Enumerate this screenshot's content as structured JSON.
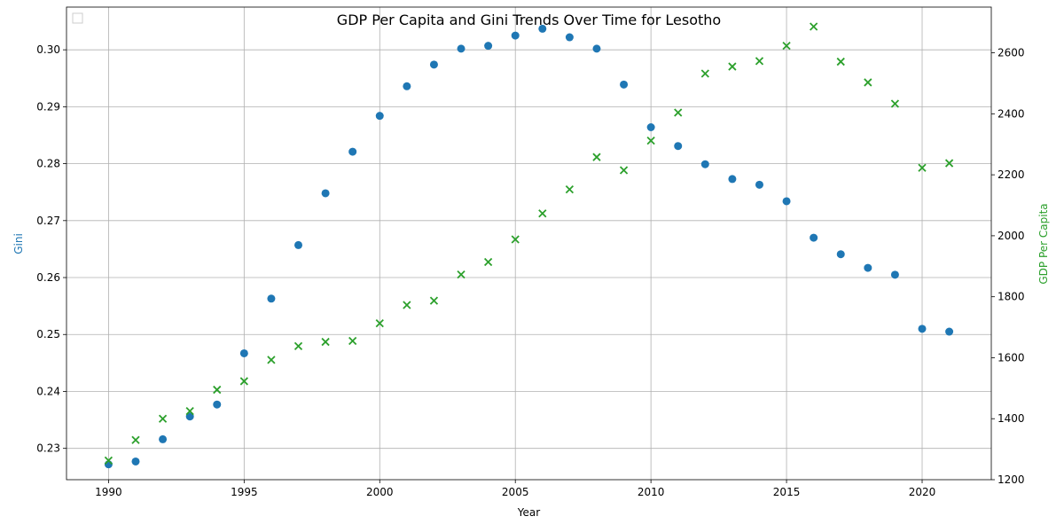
{
  "chart_data": {
    "type": "scatter",
    "title": "GDP Per Capita and Gini Trends Over Time for Lesotho",
    "xlabel": "Year",
    "ylabel_left": "Gini",
    "ylabel_right": "GDP Per Capita",
    "xlim": [
      1988.45,
      1992.55
    ],
    "x_ticks": [
      1990,
      1995,
      2000,
      2005,
      2010,
      2015,
      2020
    ],
    "y_left_lim": [
      0.2245,
      0.3075
    ],
    "y_left_ticks": [
      0.23,
      0.24,
      0.25,
      0.26,
      0.27,
      0.28,
      0.29,
      0.3
    ],
    "y_left_tick_labels": [
      "0.23",
      "0.24",
      "0.25",
      "0.26",
      "0.27",
      "0.28",
      "0.29",
      "0.30"
    ],
    "y_right_lim": [
      1200,
      2750
    ],
    "y_right_ticks": [
      1200,
      1400,
      1600,
      1800,
      2000,
      2200,
      2400,
      2600
    ],
    "grid": true,
    "legend": "upper-left (empty)",
    "colors": {
      "gini": "#1f77b4",
      "gdp": "#2ca02c"
    },
    "x": [
      1990,
      1991,
      1992,
      1993,
      1994,
      1995,
      1996,
      1997,
      1998,
      1999,
      2000,
      2001,
      2002,
      2003,
      2004,
      2005,
      2006,
      2007,
      2008,
      2009,
      2010,
      2011,
      2012,
      2013,
      2014,
      2015,
      2016,
      2017,
      2018,
      2019,
      2020,
      2021
    ],
    "series": [
      {
        "axis": "left",
        "marker": "circle",
        "values": [
          0.2272,
          0.2277,
          0.2316,
          0.2356,
          0.2377,
          0.2467,
          0.2563,
          0.2657,
          0.2748,
          0.2821,
          0.2884,
          0.2936,
          0.2974,
          0.3002,
          0.3007,
          0.3025,
          0.3037,
          0.3022,
          0.3002,
          0.2939,
          0.2864,
          0.2831,
          0.2799,
          0.2773,
          0.2763,
          0.2734,
          0.267,
          0.2641,
          0.2617,
          0.2605,
          0.251,
          0.2505
        ]
      },
      {
        "axis": "right",
        "marker": "x",
        "values": [
          1263,
          1330,
          1400,
          1425,
          1495,
          1523,
          1593,
          1638,
          1652,
          1655,
          1713,
          1773,
          1787,
          1873,
          1914,
          1988,
          2073,
          2152,
          2258,
          2215,
          2312,
          2404,
          2532,
          2555,
          2573,
          2623,
          2686,
          2571,
          2503,
          2433,
          2223,
          2238
        ]
      }
    ]
  }
}
